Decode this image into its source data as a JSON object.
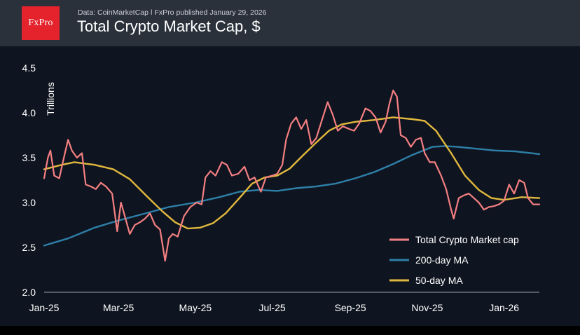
{
  "header": {
    "logo_text": "FxPro",
    "source": "Data: CoinMarketCap  ǀ  FxPro published January 29, 2026",
    "title": "Total Crypto Market Cap, $"
  },
  "colors": {
    "market_cap": "#f47f82",
    "ma200": "#2e7fa8",
    "ma50": "#e1b83e",
    "background": "#0f1520",
    "header": "#2b313b"
  },
  "chart_data": {
    "type": "line",
    "title": "Total Crypto Market Cap, $",
    "ylabel": "Trillions",
    "ylim": [
      2.0,
      4.5
    ],
    "yticks": [
      "2.0",
      "2.5",
      "3.0",
      "3.5",
      "4.0",
      "4.5"
    ],
    "xlim": [
      "2025-01-01",
      "2026-01-29"
    ],
    "xticks": [
      {
        "label": "Jan-25",
        "date": "2025-01-01"
      },
      {
        "label": "Mar-25",
        "date": "2025-03-01"
      },
      {
        "label": "May-25",
        "date": "2025-05-01"
      },
      {
        "label": "Jul-25",
        "date": "2025-07-01"
      },
      {
        "label": "Sep-25",
        "date": "2025-09-01"
      },
      {
        "label": "Nov-25",
        "date": "2025-11-01"
      },
      {
        "label": "Jan-26",
        "date": "2026-01-01"
      }
    ],
    "legend_position": "bottom-right",
    "series": [
      {
        "name": "Total Crypto Market cap",
        "color": "#f47f82",
        "points": [
          [
            "2025-01-01",
            3.27
          ],
          [
            "2025-01-04",
            3.5
          ],
          [
            "2025-01-06",
            3.58
          ],
          [
            "2025-01-09",
            3.3
          ],
          [
            "2025-01-13",
            3.27
          ],
          [
            "2025-01-17",
            3.52
          ],
          [
            "2025-01-20",
            3.7
          ],
          [
            "2025-01-23",
            3.58
          ],
          [
            "2025-01-27",
            3.5
          ],
          [
            "2025-01-31",
            3.55
          ],
          [
            "2025-02-03",
            3.2
          ],
          [
            "2025-02-07",
            3.18
          ],
          [
            "2025-02-11",
            3.15
          ],
          [
            "2025-02-15",
            3.22
          ],
          [
            "2025-02-19",
            3.18
          ],
          [
            "2025-02-24",
            3.1
          ],
          [
            "2025-02-28",
            2.68
          ],
          [
            "2025-03-03",
            3.0
          ],
          [
            "2025-03-06",
            2.85
          ],
          [
            "2025-03-10",
            2.65
          ],
          [
            "2025-03-14",
            2.75
          ],
          [
            "2025-03-18",
            2.78
          ],
          [
            "2025-03-22",
            2.82
          ],
          [
            "2025-03-26",
            2.88
          ],
          [
            "2025-03-30",
            2.75
          ],
          [
            "2025-04-03",
            2.7
          ],
          [
            "2025-04-07",
            2.35
          ],
          [
            "2025-04-10",
            2.6
          ],
          [
            "2025-04-13",
            2.65
          ],
          [
            "2025-04-17",
            2.62
          ],
          [
            "2025-04-22",
            2.85
          ],
          [
            "2025-04-27",
            2.95
          ],
          [
            "2025-05-02",
            3.0
          ],
          [
            "2025-05-06",
            2.98
          ],
          [
            "2025-05-09",
            3.28
          ],
          [
            "2025-05-13",
            3.35
          ],
          [
            "2025-05-17",
            3.3
          ],
          [
            "2025-05-22",
            3.45
          ],
          [
            "2025-05-26",
            3.42
          ],
          [
            "2025-05-30",
            3.3
          ],
          [
            "2025-06-04",
            3.32
          ],
          [
            "2025-06-09",
            3.4
          ],
          [
            "2025-06-13",
            3.25
          ],
          [
            "2025-06-17",
            3.28
          ],
          [
            "2025-06-22",
            3.12
          ],
          [
            "2025-06-26",
            3.28
          ],
          [
            "2025-07-01",
            3.3
          ],
          [
            "2025-07-05",
            3.32
          ],
          [
            "2025-07-09",
            3.42
          ],
          [
            "2025-07-12",
            3.7
          ],
          [
            "2025-07-16",
            3.88
          ],
          [
            "2025-07-20",
            3.95
          ],
          [
            "2025-07-24",
            3.82
          ],
          [
            "2025-07-28",
            3.92
          ],
          [
            "2025-08-01",
            3.65
          ],
          [
            "2025-08-05",
            3.72
          ],
          [
            "2025-08-09",
            3.9
          ],
          [
            "2025-08-14",
            4.12
          ],
          [
            "2025-08-18",
            3.98
          ],
          [
            "2025-08-22",
            3.8
          ],
          [
            "2025-08-26",
            3.85
          ],
          [
            "2025-08-31",
            3.82
          ],
          [
            "2025-09-04",
            3.8
          ],
          [
            "2025-09-08",
            3.88
          ],
          [
            "2025-09-13",
            4.05
          ],
          [
            "2025-09-17",
            4.02
          ],
          [
            "2025-09-21",
            3.95
          ],
          [
            "2025-09-25",
            3.78
          ],
          [
            "2025-09-29",
            3.9
          ],
          [
            "2025-10-02",
            4.1
          ],
          [
            "2025-10-05",
            4.25
          ],
          [
            "2025-10-08",
            4.18
          ],
          [
            "2025-10-11",
            3.75
          ],
          [
            "2025-10-15",
            3.72
          ],
          [
            "2025-10-19",
            3.62
          ],
          [
            "2025-10-23",
            3.7
          ],
          [
            "2025-10-27",
            3.72
          ],
          [
            "2025-10-30",
            3.55
          ],
          [
            "2025-11-03",
            3.45
          ],
          [
            "2025-11-07",
            3.45
          ],
          [
            "2025-11-12",
            3.3
          ],
          [
            "2025-11-16",
            3.15
          ],
          [
            "2025-11-20",
            2.92
          ],
          [
            "2025-11-22",
            2.82
          ],
          [
            "2025-11-26",
            3.05
          ],
          [
            "2025-11-30",
            3.08
          ],
          [
            "2025-12-04",
            3.1
          ],
          [
            "2025-12-08",
            3.05
          ],
          [
            "2025-12-12",
            3.0
          ],
          [
            "2025-12-16",
            2.92
          ],
          [
            "2025-12-20",
            2.95
          ],
          [
            "2025-12-24",
            2.96
          ],
          [
            "2025-12-28",
            2.98
          ],
          [
            "2026-01-01",
            3.02
          ],
          [
            "2026-01-05",
            3.2
          ],
          [
            "2026-01-09",
            3.1
          ],
          [
            "2026-01-13",
            3.25
          ],
          [
            "2026-01-17",
            3.22
          ],
          [
            "2026-01-20",
            3.05
          ],
          [
            "2026-01-24",
            2.98
          ],
          [
            "2026-01-29",
            2.98
          ]
        ]
      },
      {
        "name": "200-day MA",
        "color": "#2e7fa8",
        "points": [
          [
            "2025-01-01",
            2.52
          ],
          [
            "2025-01-20",
            2.6
          ],
          [
            "2025-02-10",
            2.72
          ],
          [
            "2025-03-01",
            2.8
          ],
          [
            "2025-03-20",
            2.87
          ],
          [
            "2025-04-10",
            2.95
          ],
          [
            "2025-05-01",
            3.0
          ],
          [
            "2025-05-20",
            3.06
          ],
          [
            "2025-06-05",
            3.12
          ],
          [
            "2025-06-20",
            3.14
          ],
          [
            "2025-07-05",
            3.13
          ],
          [
            "2025-07-20",
            3.16
          ],
          [
            "2025-08-05",
            3.18
          ],
          [
            "2025-08-20",
            3.21
          ],
          [
            "2025-09-05",
            3.27
          ],
          [
            "2025-09-20",
            3.34
          ],
          [
            "2025-10-05",
            3.43
          ],
          [
            "2025-10-20",
            3.53
          ],
          [
            "2025-11-05",
            3.62
          ],
          [
            "2025-11-15",
            3.63
          ],
          [
            "2025-11-25",
            3.62
          ],
          [
            "2025-12-10",
            3.6
          ],
          [
            "2025-12-25",
            3.58
          ],
          [
            "2026-01-10",
            3.57
          ],
          [
            "2026-01-29",
            3.54
          ]
        ]
      },
      {
        "name": "50-day MA",
        "color": "#e1b83e",
        "points": [
          [
            "2025-01-01",
            3.37
          ],
          [
            "2025-01-15",
            3.42
          ],
          [
            "2025-01-25",
            3.45
          ],
          [
            "2025-02-10",
            3.42
          ],
          [
            "2025-02-25",
            3.37
          ],
          [
            "2025-03-10",
            3.26
          ],
          [
            "2025-03-25",
            3.05
          ],
          [
            "2025-04-05",
            2.9
          ],
          [
            "2025-04-15",
            2.78
          ],
          [
            "2025-04-25",
            2.71
          ],
          [
            "2025-05-05",
            2.72
          ],
          [
            "2025-05-15",
            2.77
          ],
          [
            "2025-05-25",
            2.88
          ],
          [
            "2025-06-05",
            3.05
          ],
          [
            "2025-06-15",
            3.21
          ],
          [
            "2025-06-25",
            3.28
          ],
          [
            "2025-07-05",
            3.3
          ],
          [
            "2025-07-15",
            3.38
          ],
          [
            "2025-07-25",
            3.52
          ],
          [
            "2025-08-05",
            3.67
          ],
          [
            "2025-08-15",
            3.8
          ],
          [
            "2025-08-25",
            3.87
          ],
          [
            "2025-09-05",
            3.9
          ],
          [
            "2025-09-20",
            3.92
          ],
          [
            "2025-10-05",
            3.95
          ],
          [
            "2025-10-20",
            3.93
          ],
          [
            "2025-10-30",
            3.91
          ],
          [
            "2025-11-08",
            3.8
          ],
          [
            "2025-11-20",
            3.55
          ],
          [
            "2025-12-01",
            3.3
          ],
          [
            "2025-12-12",
            3.14
          ],
          [
            "2025-12-22",
            3.05
          ],
          [
            "2026-01-01",
            3.03
          ],
          [
            "2026-01-15",
            3.06
          ],
          [
            "2026-01-29",
            3.05
          ]
        ]
      }
    ]
  }
}
